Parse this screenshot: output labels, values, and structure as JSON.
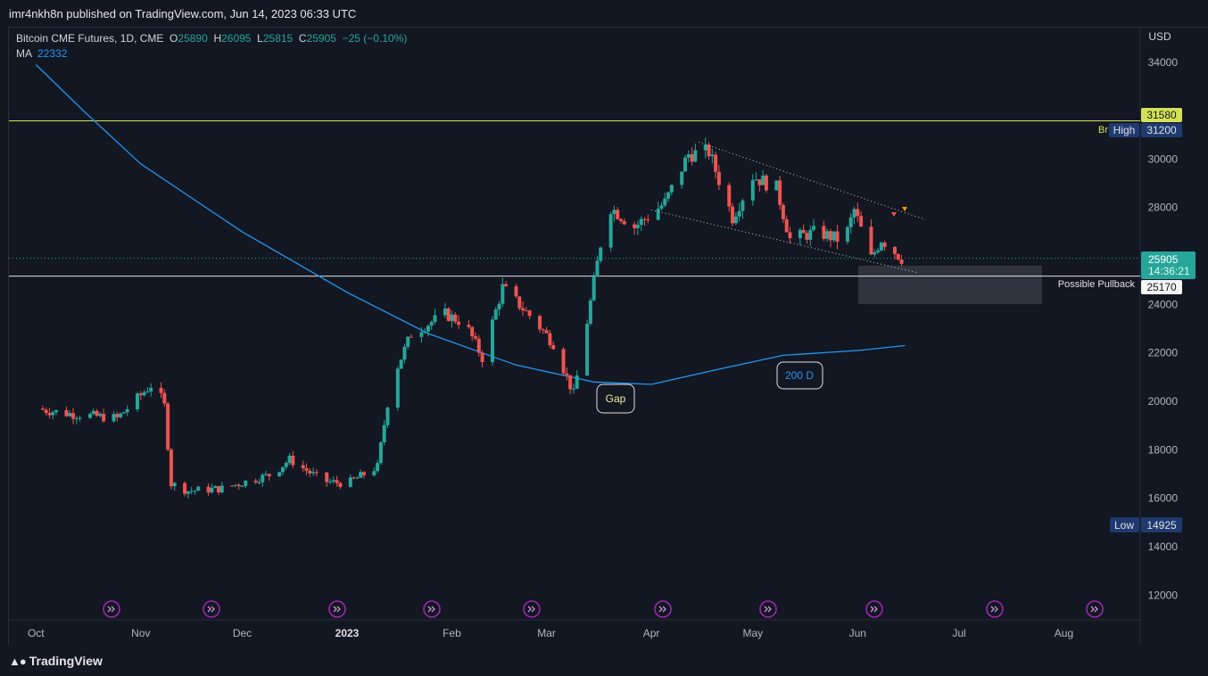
{
  "header": {
    "published_by": "imr4nkh8n published on TradingView.com, Jun 14, 2023 06:33 UTC"
  },
  "legend": {
    "symbol": "Bitcoin CME Futures, 1D, CME",
    "o_label": "O",
    "o_value": "25890",
    "h_label": "H",
    "h_value": "26095",
    "l_label": "L",
    "l_value": "25815",
    "c_label": "C",
    "c_value": "25905",
    "change": "−25 (−0.10%)",
    "ma_label": "MA",
    "ma_value": "22332"
  },
  "footer": {
    "brand": "TradingView"
  },
  "colors": {
    "up": "#26a69a",
    "down": "#ef5350",
    "ma": "#2196f3",
    "background": "#131722",
    "resistance": "#d4e157"
  },
  "chart_data": {
    "type": "candlestick",
    "currency": "USD",
    "y_ticks": [
      12000,
      14000,
      16000,
      18000,
      20000,
      22000,
      24000,
      26000,
      28000,
      30000,
      34000
    ],
    "x_ticks": [
      "Oct",
      "Nov",
      "Dec",
      "2023",
      "Feb",
      "Mar",
      "Apr",
      "May",
      "Jun",
      "Jul",
      "Aug"
    ],
    "price_labels": {
      "resistance": "31580",
      "high_label": "High",
      "high": "31200",
      "low_label": "Low",
      "low": "14925",
      "last": "25905",
      "countdown": "14:36:21",
      "support": "25170",
      "truncated_label": "Br"
    },
    "annotations": {
      "gap": "Gap",
      "ma200": "200 D",
      "pullback": "Possible Pullback"
    },
    "anchors": [
      {
        "date": "2022-10-01",
        "price": 19700
      },
      {
        "date": "2022-10-10",
        "price": 19500
      },
      {
        "date": "2022-10-25",
        "price": 19300
      },
      {
        "date": "2022-11-05",
        "price": 20800
      },
      {
        "date": "2022-11-08",
        "price": 19800
      },
      {
        "date": "2022-11-10",
        "price": 16600
      },
      {
        "date": "2022-11-15",
        "price": 16300
      },
      {
        "date": "2022-11-25",
        "price": 16400
      },
      {
        "date": "2022-12-10",
        "price": 17000
      },
      {
        "date": "2022-12-15",
        "price": 17600
      },
      {
        "date": "2022-12-25",
        "price": 16700
      },
      {
        "date": "2023-01-01",
        "price": 16600
      },
      {
        "date": "2023-01-10",
        "price": 17300
      },
      {
        "date": "2023-01-14",
        "price": 20800
      },
      {
        "date": "2023-01-20",
        "price": 22800
      },
      {
        "date": "2023-01-30",
        "price": 23600
      },
      {
        "date": "2023-02-05",
        "price": 23200
      },
      {
        "date": "2023-02-10",
        "price": 21800
      },
      {
        "date": "2023-02-16",
        "price": 24700
      },
      {
        "date": "2023-02-25",
        "price": 23400
      },
      {
        "date": "2023-03-03",
        "price": 22400
      },
      {
        "date": "2023-03-09",
        "price": 20300
      },
      {
        "date": "2023-03-12",
        "price": 22500
      },
      {
        "date": "2023-03-17",
        "price": 26500
      },
      {
        "date": "2023-03-20",
        "price": 28000
      },
      {
        "date": "2023-03-27",
        "price": 27200
      },
      {
        "date": "2023-04-05",
        "price": 28200
      },
      {
        "date": "2023-04-12",
        "price": 30200
      },
      {
        "date": "2023-04-18",
        "price": 30300
      },
      {
        "date": "2023-04-25",
        "price": 27600
      },
      {
        "date": "2023-05-01",
        "price": 29300
      },
      {
        "date": "2023-05-08",
        "price": 28800
      },
      {
        "date": "2023-05-12",
        "price": 26700
      },
      {
        "date": "2023-05-20",
        "price": 27000
      },
      {
        "date": "2023-05-28",
        "price": 26600
      },
      {
        "date": "2023-05-31",
        "price": 27900
      },
      {
        "date": "2023-06-05",
        "price": 25900
      },
      {
        "date": "2023-06-08",
        "price": 26700
      },
      {
        "date": "2023-06-14",
        "price": 25905
      }
    ],
    "ma200": [
      {
        "date": "2022-10-01",
        "price": 33900
      },
      {
        "date": "2022-10-15",
        "price": 32000
      },
      {
        "date": "2022-11-01",
        "price": 29800
      },
      {
        "date": "2022-12-01",
        "price": 27000
      },
      {
        "date": "2023-01-01",
        "price": 24500
      },
      {
        "date": "2023-01-25",
        "price": 22800
      },
      {
        "date": "2023-02-20",
        "price": 21500
      },
      {
        "date": "2023-03-15",
        "price": 20800
      },
      {
        "date": "2023-04-01",
        "price": 20700
      },
      {
        "date": "2023-04-20",
        "price": 21300
      },
      {
        "date": "2023-05-10",
        "price": 21900
      },
      {
        "date": "2023-06-01",
        "price": 22100
      },
      {
        "date": "2023-06-15",
        "price": 22300
      }
    ]
  }
}
